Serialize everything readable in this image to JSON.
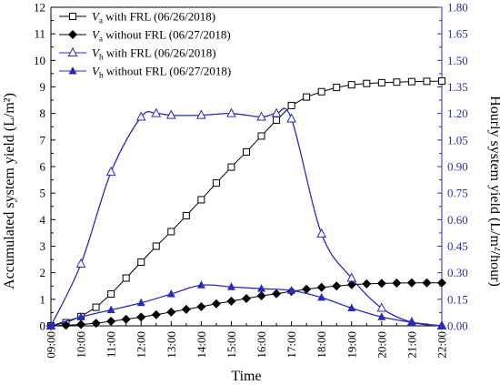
{
  "chart_data": {
    "type": "line",
    "xlabel": "Time",
    "ylabel_left": "Accumulated system yield (L/m²)",
    "ylabel_right": "Hourly system yield (L/m²/hour)",
    "left_ylim": [
      0,
      12
    ],
    "right_ylim": [
      0,
      1.8
    ],
    "left_ticks": [
      0,
      1,
      2,
      3,
      4,
      5,
      6,
      7,
      8,
      9,
      10,
      11,
      12
    ],
    "right_ticks": [
      "0.00",
      "0.15",
      "0.30",
      "0.45",
      "0.60",
      "0.75",
      "0.90",
      "1.05",
      "1.20",
      "1.35",
      "1.50",
      "1.65",
      "1.80"
    ],
    "x_tick_labels": [
      "09:00",
      "10:00",
      "11:00",
      "12:00",
      "13:00",
      "14:00",
      "15:00",
      "16:00",
      "17:00",
      "18:00",
      "19:00",
      "20:00",
      "21:00",
      "22:00"
    ],
    "x_range": [
      9,
      22
    ],
    "left_axis_color": "#000000",
    "right_axis_color": "#2b2bb8",
    "grid": false,
    "legend_position": "top-left",
    "series": [
      {
        "legend_symbol": "V",
        "legend_sub": "a",
        "legend_rest": " with FRL (06/26/2018)",
        "axis": "left",
        "color": "#000000",
        "marker": "open-square",
        "smooth": false,
        "x": [
          9,
          9.5,
          10,
          10.5,
          11,
          11.5,
          12,
          12.5,
          13,
          13.5,
          14,
          14.5,
          15,
          15.5,
          16,
          16.5,
          17,
          17.5,
          18,
          18.5,
          19,
          19.5,
          20,
          20.5,
          21,
          21.5,
          22
        ],
        "y": [
          0,
          0.12,
          0.35,
          0.7,
          1.2,
          1.8,
          2.4,
          3.0,
          3.55,
          4.15,
          4.75,
          5.38,
          5.98,
          6.55,
          7.15,
          7.75,
          8.3,
          8.62,
          8.82,
          8.98,
          9.08,
          9.13,
          9.16,
          9.18,
          9.2,
          9.21,
          9.22
        ]
      },
      {
        "legend_symbol": "V",
        "legend_sub": "a",
        "legend_rest": " without FRL (06/27/2018)",
        "axis": "left",
        "color": "#000000",
        "marker": "filled-diamond",
        "smooth": false,
        "x": [
          9,
          9.5,
          10,
          10.5,
          11,
          11.5,
          12,
          12.5,
          13,
          13.5,
          14,
          14.5,
          15,
          15.5,
          16,
          16.5,
          17,
          17.5,
          18,
          18.5,
          19,
          19.5,
          20,
          20.5,
          21,
          21.5,
          22
        ],
        "y": [
          0,
          0.02,
          0.05,
          0.1,
          0.17,
          0.25,
          0.33,
          0.42,
          0.52,
          0.62,
          0.72,
          0.83,
          0.93,
          1.03,
          1.13,
          1.21,
          1.3,
          1.38,
          1.45,
          1.5,
          1.55,
          1.58,
          1.6,
          1.61,
          1.62,
          1.62,
          1.62
        ]
      },
      {
        "legend_symbol": "V",
        "legend_sub": "h",
        "legend_rest": " with FRL (06/26/2018)",
        "axis": "right",
        "color": "#2b2bb8",
        "marker": "open-triangle",
        "smooth": true,
        "x": [
          9,
          10,
          11,
          12,
          12.5,
          13,
          14,
          15,
          16,
          16.5,
          17,
          18,
          19,
          20,
          21,
          22
        ],
        "y": [
          0.0,
          0.35,
          0.87,
          1.18,
          1.2,
          1.19,
          1.19,
          1.2,
          1.18,
          1.2,
          1.17,
          0.52,
          0.27,
          0.1,
          0.02,
          0.0
        ]
      },
      {
        "legend_symbol": "V",
        "legend_sub": "h",
        "legend_rest": " without FRL (06/27/2018)",
        "axis": "right",
        "color": "#2b2bb8",
        "marker": "filled-triangle",
        "smooth": true,
        "x": [
          9,
          10,
          11,
          12,
          13,
          14,
          15,
          16,
          17,
          18,
          19,
          20,
          21,
          22
        ],
        "y": [
          0.0,
          0.05,
          0.09,
          0.13,
          0.18,
          0.23,
          0.22,
          0.21,
          0.2,
          0.16,
          0.1,
          0.05,
          0.02,
          0.0
        ]
      }
    ]
  }
}
